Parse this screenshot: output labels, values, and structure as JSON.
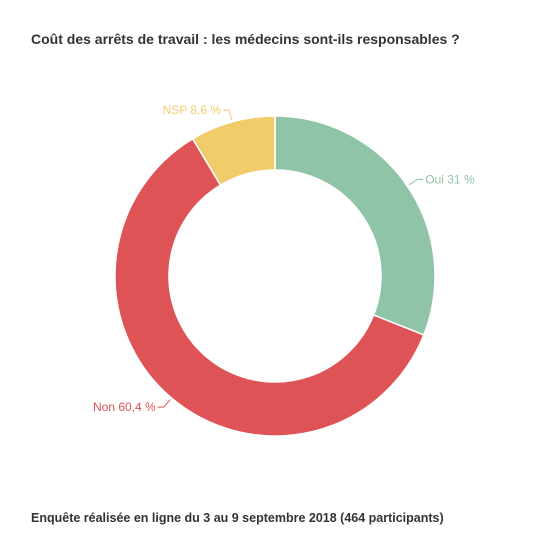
{
  "chart_data": {
    "type": "pie",
    "donut": true,
    "title": "Coût des arrêts de travail : les médecins sont-ils responsables ?",
    "slices": [
      {
        "name": "Oui",
        "value": 31,
        "label": "Oui 31 %",
        "color": "#8fc4a8"
      },
      {
        "name": "Non",
        "value": 60.4,
        "label": "Non 60,4 %",
        "color": "#de5356"
      },
      {
        "name": "NSP",
        "value": 8.6,
        "label": "NSP 8,6 %",
        "color": "#f0cc6a"
      }
    ]
  },
  "footer": {
    "note": "Enquête réalisée en ligne du 3 au 9 septembre 2018  (464 participants)"
  }
}
